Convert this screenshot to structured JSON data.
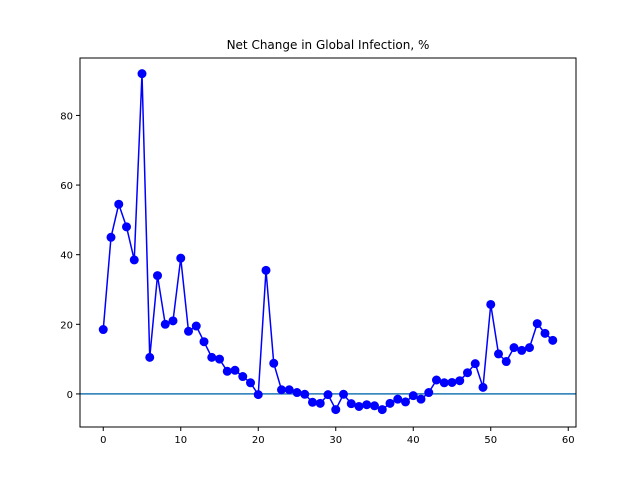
{
  "chart_data": {
    "type": "line",
    "title": "Net Change in Global Infection, %",
    "xlabel": "",
    "ylabel": "",
    "xlim": [
      -3,
      61
    ],
    "ylim": [
      -9.5,
      96.5
    ],
    "xticks": [
      0,
      10,
      20,
      30,
      40,
      50,
      60
    ],
    "yticks": [
      0,
      20,
      40,
      60,
      80
    ],
    "grid": false,
    "reference_line_y": 0,
    "colors": {
      "series": "#0000ff",
      "reference_line": "#1f77b4"
    },
    "series": [
      {
        "marker": "circle",
        "x": [
          0,
          1,
          2,
          3,
          4,
          5,
          6,
          7,
          8,
          9,
          10,
          11,
          12,
          13,
          14,
          15,
          16,
          17,
          18,
          19,
          20,
          21,
          22,
          23,
          24,
          25,
          26,
          27,
          28,
          29,
          30,
          31,
          32,
          33,
          34,
          35,
          36,
          37,
          38,
          39,
          40,
          41,
          42,
          43,
          44,
          45,
          46,
          47,
          48,
          49,
          50,
          51,
          52,
          53,
          54,
          55,
          56,
          57,
          58
        ],
        "values": [
          18.5,
          45,
          54.5,
          48,
          38.5,
          92,
          10.5,
          34,
          20,
          21,
          39,
          18,
          19.5,
          15,
          10.5,
          10,
          6.5,
          6.8,
          5,
          3.2,
          -0.2,
          35.5,
          8.8,
          1.2,
          1.2,
          0.4,
          -0.1,
          -2.4,
          -2.7,
          -0.2,
          -4.5,
          -0.1,
          -2.8,
          -3.6,
          -3.1,
          -3.4,
          -4.5,
          -2.7,
          -1.5,
          -2.3,
          -0.5,
          -1.5,
          0.4,
          4,
          3.2,
          3.3,
          3.8,
          6.1,
          8.7,
          1.9,
          25.7,
          11.5,
          9.3,
          13.3,
          12.5,
          13.3,
          20.2,
          17.4,
          15.4
        ]
      }
    ]
  }
}
